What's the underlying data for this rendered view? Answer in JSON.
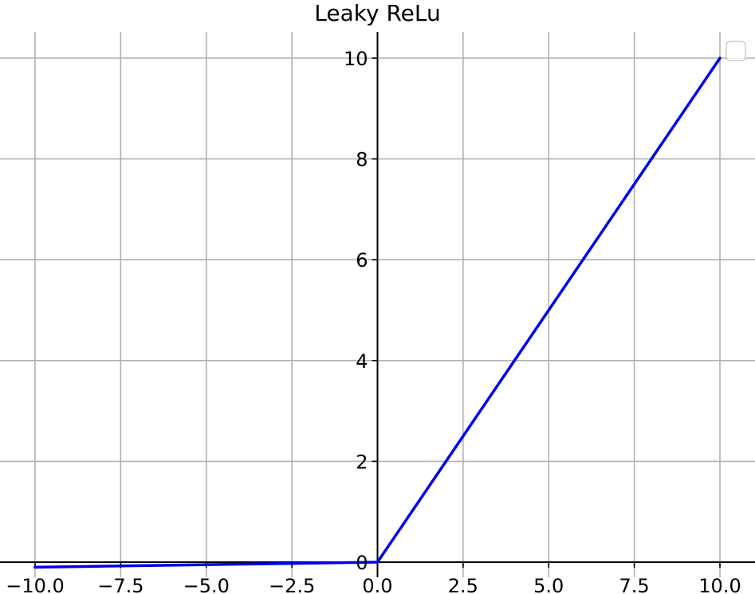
{
  "chart_data": {
    "type": "line",
    "title": "Leaky ReLu",
    "xlabel": "",
    "ylabel": "",
    "xlim": [
      -10.0,
      10.0
    ],
    "ylim": [
      0,
      10
    ],
    "x_ticks": [
      "−10.0",
      "−7.5",
      "−5.0",
      "−2.5",
      "0.0",
      "2.5",
      "5.0",
      "7.5",
      "10.0"
    ],
    "y_ticks": [
      "0",
      "2",
      "4",
      "6",
      "8",
      "10"
    ],
    "x_tick_values": [
      -10.0,
      -7.5,
      -5.0,
      -2.5,
      0.0,
      2.5,
      5.0,
      7.5,
      10.0
    ],
    "y_tick_values": [
      0,
      2,
      4,
      6,
      8,
      10
    ],
    "grid": true,
    "legend": "top-right (empty)",
    "series": [
      {
        "color": "#0000ee",
        "x": [
          -10,
          -7.5,
          -5,
          -2.5,
          0,
          2.5,
          5,
          7.5,
          10
        ],
        "y": [
          -0.1,
          -0.075,
          -0.05,
          -0.025,
          0,
          2.5,
          5,
          7.5,
          10
        ]
      }
    ],
    "colors": {
      "line": "#0000ee",
      "grid": "#b0b0b0",
      "axis": "#000000"
    }
  }
}
